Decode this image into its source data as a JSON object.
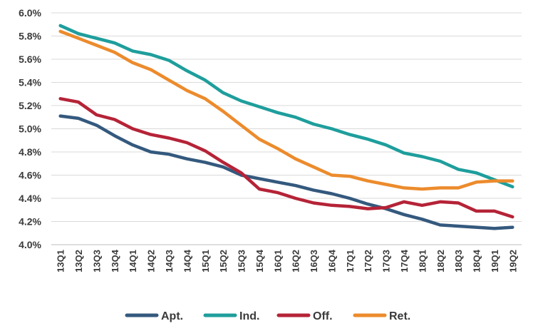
{
  "chart_data": {
    "type": "line",
    "title": "",
    "xlabel": "",
    "ylabel": "",
    "ylim": [
      4.0,
      6.0
    ],
    "y_ticks": [
      "4.0%",
      "4.2%",
      "4.4%",
      "4.6%",
      "4.8%",
      "5.0%",
      "5.2%",
      "5.4%",
      "5.6%",
      "5.8%",
      "6.0%"
    ],
    "y_tick_values": [
      4.0,
      4.2,
      4.4,
      4.6,
      4.8,
      5.0,
      5.2,
      5.4,
      5.6,
      5.8,
      6.0
    ],
    "grid": "horizontal",
    "legend_position": "bottom-center",
    "categories": [
      "13Q1",
      "13Q2",
      "13Q3",
      "13Q4",
      "14Q1",
      "14Q2",
      "14Q3",
      "14Q4",
      "15Q1",
      "15Q2",
      "15Q3",
      "15Q4",
      "16Q1",
      "16Q2",
      "16Q3",
      "16Q4",
      "17Q1",
      "17Q2",
      "17Q3",
      "17Q4",
      "18Q1",
      "18Q2",
      "18Q3",
      "18Q4",
      "19Q1",
      "19Q2"
    ],
    "series": [
      {
        "name": "Apt.",
        "color": "#34597e",
        "values": [
          5.11,
          5.09,
          5.03,
          4.94,
          4.86,
          4.8,
          4.78,
          4.74,
          4.71,
          4.67,
          4.6,
          4.57,
          4.54,
          4.51,
          4.47,
          4.44,
          4.4,
          4.35,
          4.31,
          4.26,
          4.22,
          4.17,
          4.16,
          4.15,
          4.14,
          4.15
        ]
      },
      {
        "name": "Ind.",
        "color": "#1e9e9c",
        "values": [
          5.89,
          5.82,
          5.78,
          5.74,
          5.67,
          5.64,
          5.59,
          5.5,
          5.42,
          5.31,
          5.24,
          5.19,
          5.14,
          5.1,
          5.04,
          5.0,
          4.95,
          4.91,
          4.86,
          4.79,
          4.76,
          4.72,
          4.65,
          4.62,
          4.56,
          4.5
        ]
      },
      {
        "name": "Off.",
        "color": "#b52337",
        "values": [
          5.26,
          5.23,
          5.12,
          5.08,
          5.0,
          4.95,
          4.92,
          4.88,
          4.81,
          4.71,
          4.62,
          4.48,
          4.45,
          4.4,
          4.36,
          4.34,
          4.33,
          4.31,
          4.32,
          4.37,
          4.34,
          4.37,
          4.36,
          4.29,
          4.29,
          4.24
        ]
      },
      {
        "name": "Ret.",
        "color": "#ec8b2c",
        "values": [
          5.84,
          5.78,
          5.72,
          5.66,
          5.57,
          5.51,
          5.42,
          5.33,
          5.26,
          5.15,
          5.03,
          4.91,
          4.83,
          4.74,
          4.67,
          4.6,
          4.59,
          4.55,
          4.52,
          4.49,
          4.48,
          4.49,
          4.49,
          4.54,
          4.55,
          4.55
        ]
      }
    ]
  }
}
